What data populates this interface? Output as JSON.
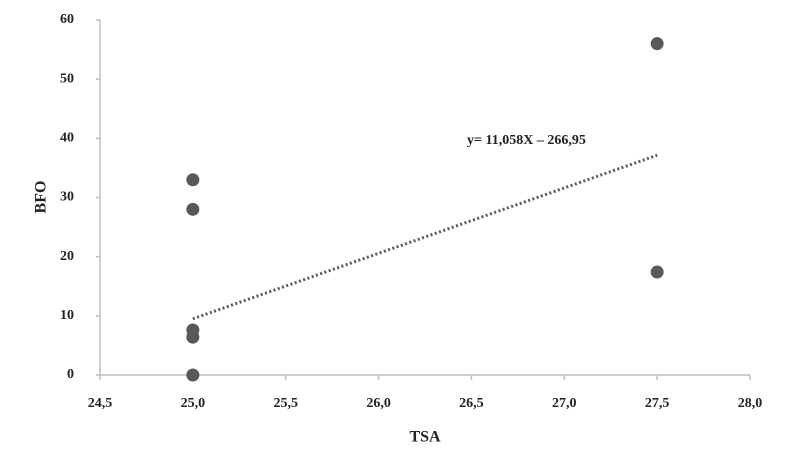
{
  "chart_data": {
    "type": "scatter",
    "x_label": "TSA",
    "y_label": "BFO",
    "series": [
      {
        "color": "#595959",
        "x": [
          25.0,
          25.0,
          25.0,
          25.0,
          25.0,
          27.5,
          27.5
        ],
        "values": [
          33,
          28,
          7.6,
          6.4,
          0,
          56,
          17.4
        ]
      }
    ],
    "trendline": {
      "slope": 11.058,
      "intercept": -266.95,
      "label": "y= 11,058X – 266,95",
      "color": "#595959"
    },
    "xlim": [
      24.5,
      28.0
    ],
    "xticks": [
      {
        "value": 24.5,
        "label": "24,5"
      },
      {
        "value": 25.0,
        "label": "25,0"
      },
      {
        "value": 25.5,
        "label": "25,5"
      },
      {
        "value": 26.0,
        "label": "26,0"
      },
      {
        "value": 26.5,
        "label": "26,5"
      },
      {
        "value": 27.0,
        "label": "27,0"
      },
      {
        "value": 27.5,
        "label": "27,5"
      },
      {
        "value": 28.0,
        "label": "28,0"
      }
    ],
    "ylim": [
      0,
      60
    ],
    "yticks": [
      0,
      10,
      20,
      30,
      40,
      50,
      60
    ],
    "grid": false
  }
}
